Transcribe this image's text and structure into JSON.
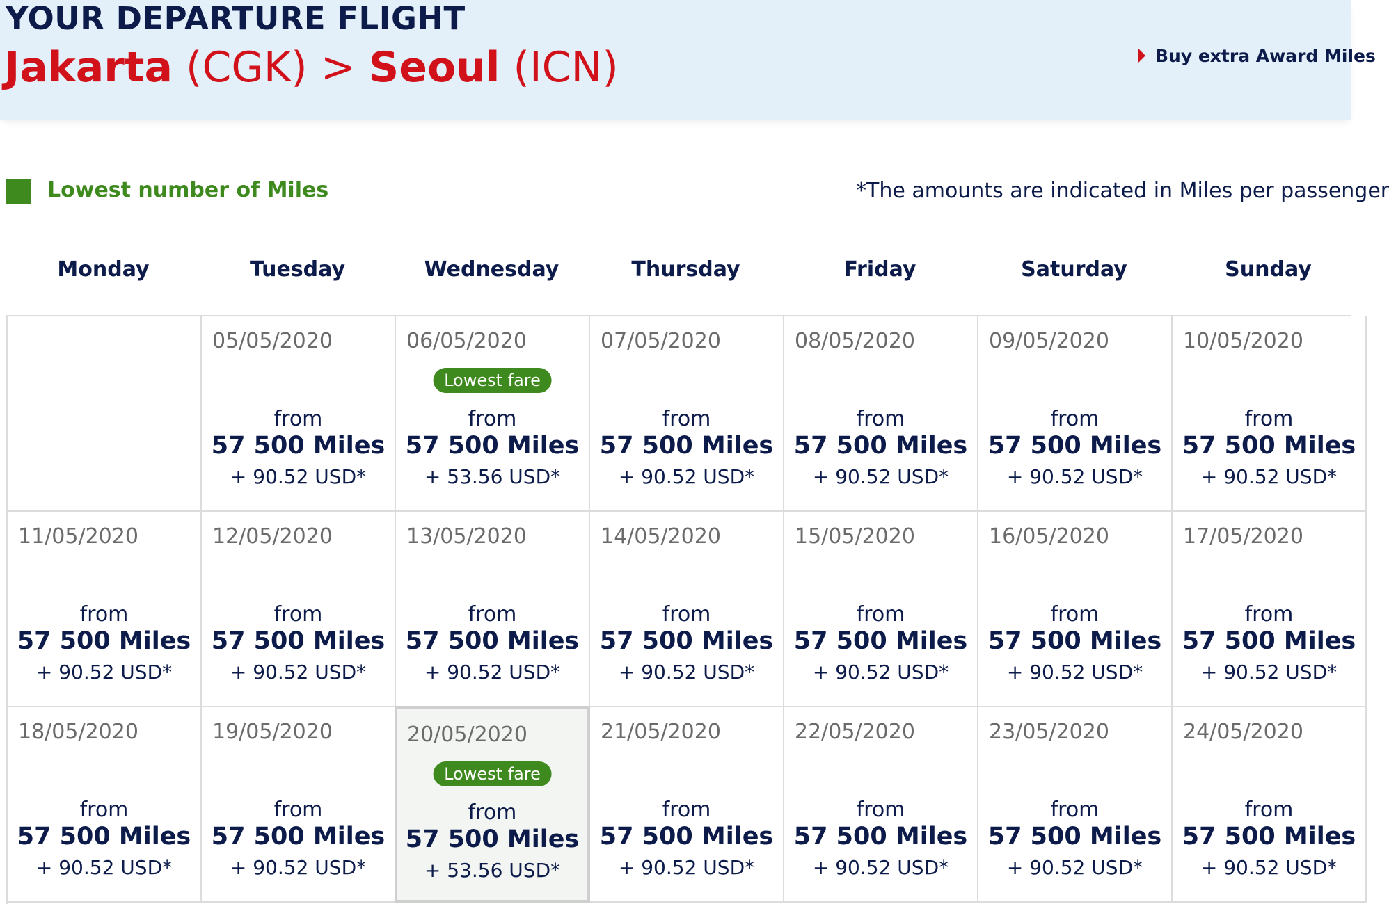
{
  "header": {
    "title": "YOUR DEPARTURE FLIGHT",
    "origin_city": "Jakarta",
    "origin_code": "(CGK)",
    "separator": ">",
    "destination_city": "Seoul",
    "destination_code": "(ICN)",
    "buy_miles_link": "Buy extra Award Miles"
  },
  "legend": {
    "label": "Lowest number of Miles",
    "color": "#3f8a1f"
  },
  "note": "*The amounts are indicated in Miles per passenger",
  "weekdays": [
    "Monday",
    "Tuesday",
    "Wednesday",
    "Thursday",
    "Friday",
    "Saturday",
    "Sunday"
  ],
  "calendar": {
    "weeks": [
      [
        {
          "date": "",
          "empty": true
        },
        {
          "date": "05/05/2020",
          "from": "from",
          "miles": "57 500 Miles",
          "tax": "+ 90.52 USD*"
        },
        {
          "date": "06/05/2020",
          "badge": "Lowest fare",
          "from": "from",
          "miles": "57 500 Miles",
          "tax": "+ 53.56 USD*"
        },
        {
          "date": "07/05/2020",
          "from": "from",
          "miles": "57 500 Miles",
          "tax": "+ 90.52 USD*"
        },
        {
          "date": "08/05/2020",
          "from": "from",
          "miles": "57 500 Miles",
          "tax": "+ 90.52 USD*"
        },
        {
          "date": "09/05/2020",
          "from": "from",
          "miles": "57 500 Miles",
          "tax": "+ 90.52 USD*"
        },
        {
          "date": "10/05/2020",
          "from": "from",
          "miles": "57 500 Miles",
          "tax": "+ 90.52 USD*"
        }
      ],
      [
        {
          "date": "11/05/2020",
          "from": "from",
          "miles": "57 500 Miles",
          "tax": "+ 90.52 USD*"
        },
        {
          "date": "12/05/2020",
          "from": "from",
          "miles": "57 500 Miles",
          "tax": "+ 90.52 USD*"
        },
        {
          "date": "13/05/2020",
          "from": "from",
          "miles": "57 500 Miles",
          "tax": "+ 90.52 USD*"
        },
        {
          "date": "14/05/2020",
          "from": "from",
          "miles": "57 500 Miles",
          "tax": "+ 90.52 USD*"
        },
        {
          "date": "15/05/2020",
          "from": "from",
          "miles": "57 500 Miles",
          "tax": "+ 90.52 USD*"
        },
        {
          "date": "16/05/2020",
          "from": "from",
          "miles": "57 500 Miles",
          "tax": "+ 90.52 USD*"
        },
        {
          "date": "17/05/2020",
          "from": "from",
          "miles": "57 500 Miles",
          "tax": "+ 90.52 USD*"
        }
      ],
      [
        {
          "date": "18/05/2020",
          "from": "from",
          "miles": "57 500 Miles",
          "tax": "+ 90.52 USD*"
        },
        {
          "date": "19/05/2020",
          "from": "from",
          "miles": "57 500 Miles",
          "tax": "+ 90.52 USD*"
        },
        {
          "date": "20/05/2020",
          "badge": "Lowest fare",
          "from": "from",
          "miles": "57 500 Miles",
          "tax": "+ 53.56 USD*",
          "selected": true
        },
        {
          "date": "21/05/2020",
          "from": "from",
          "miles": "57 500 Miles",
          "tax": "+ 90.52 USD*"
        },
        {
          "date": "22/05/2020",
          "from": "from",
          "miles": "57 500 Miles",
          "tax": "+ 90.52 USD*"
        },
        {
          "date": "23/05/2020",
          "from": "from",
          "miles": "57 500 Miles",
          "tax": "+ 90.52 USD*"
        },
        {
          "date": "24/05/2020",
          "from": "from",
          "miles": "57 500 Miles",
          "tax": "+ 90.52 USD*"
        }
      ]
    ]
  }
}
